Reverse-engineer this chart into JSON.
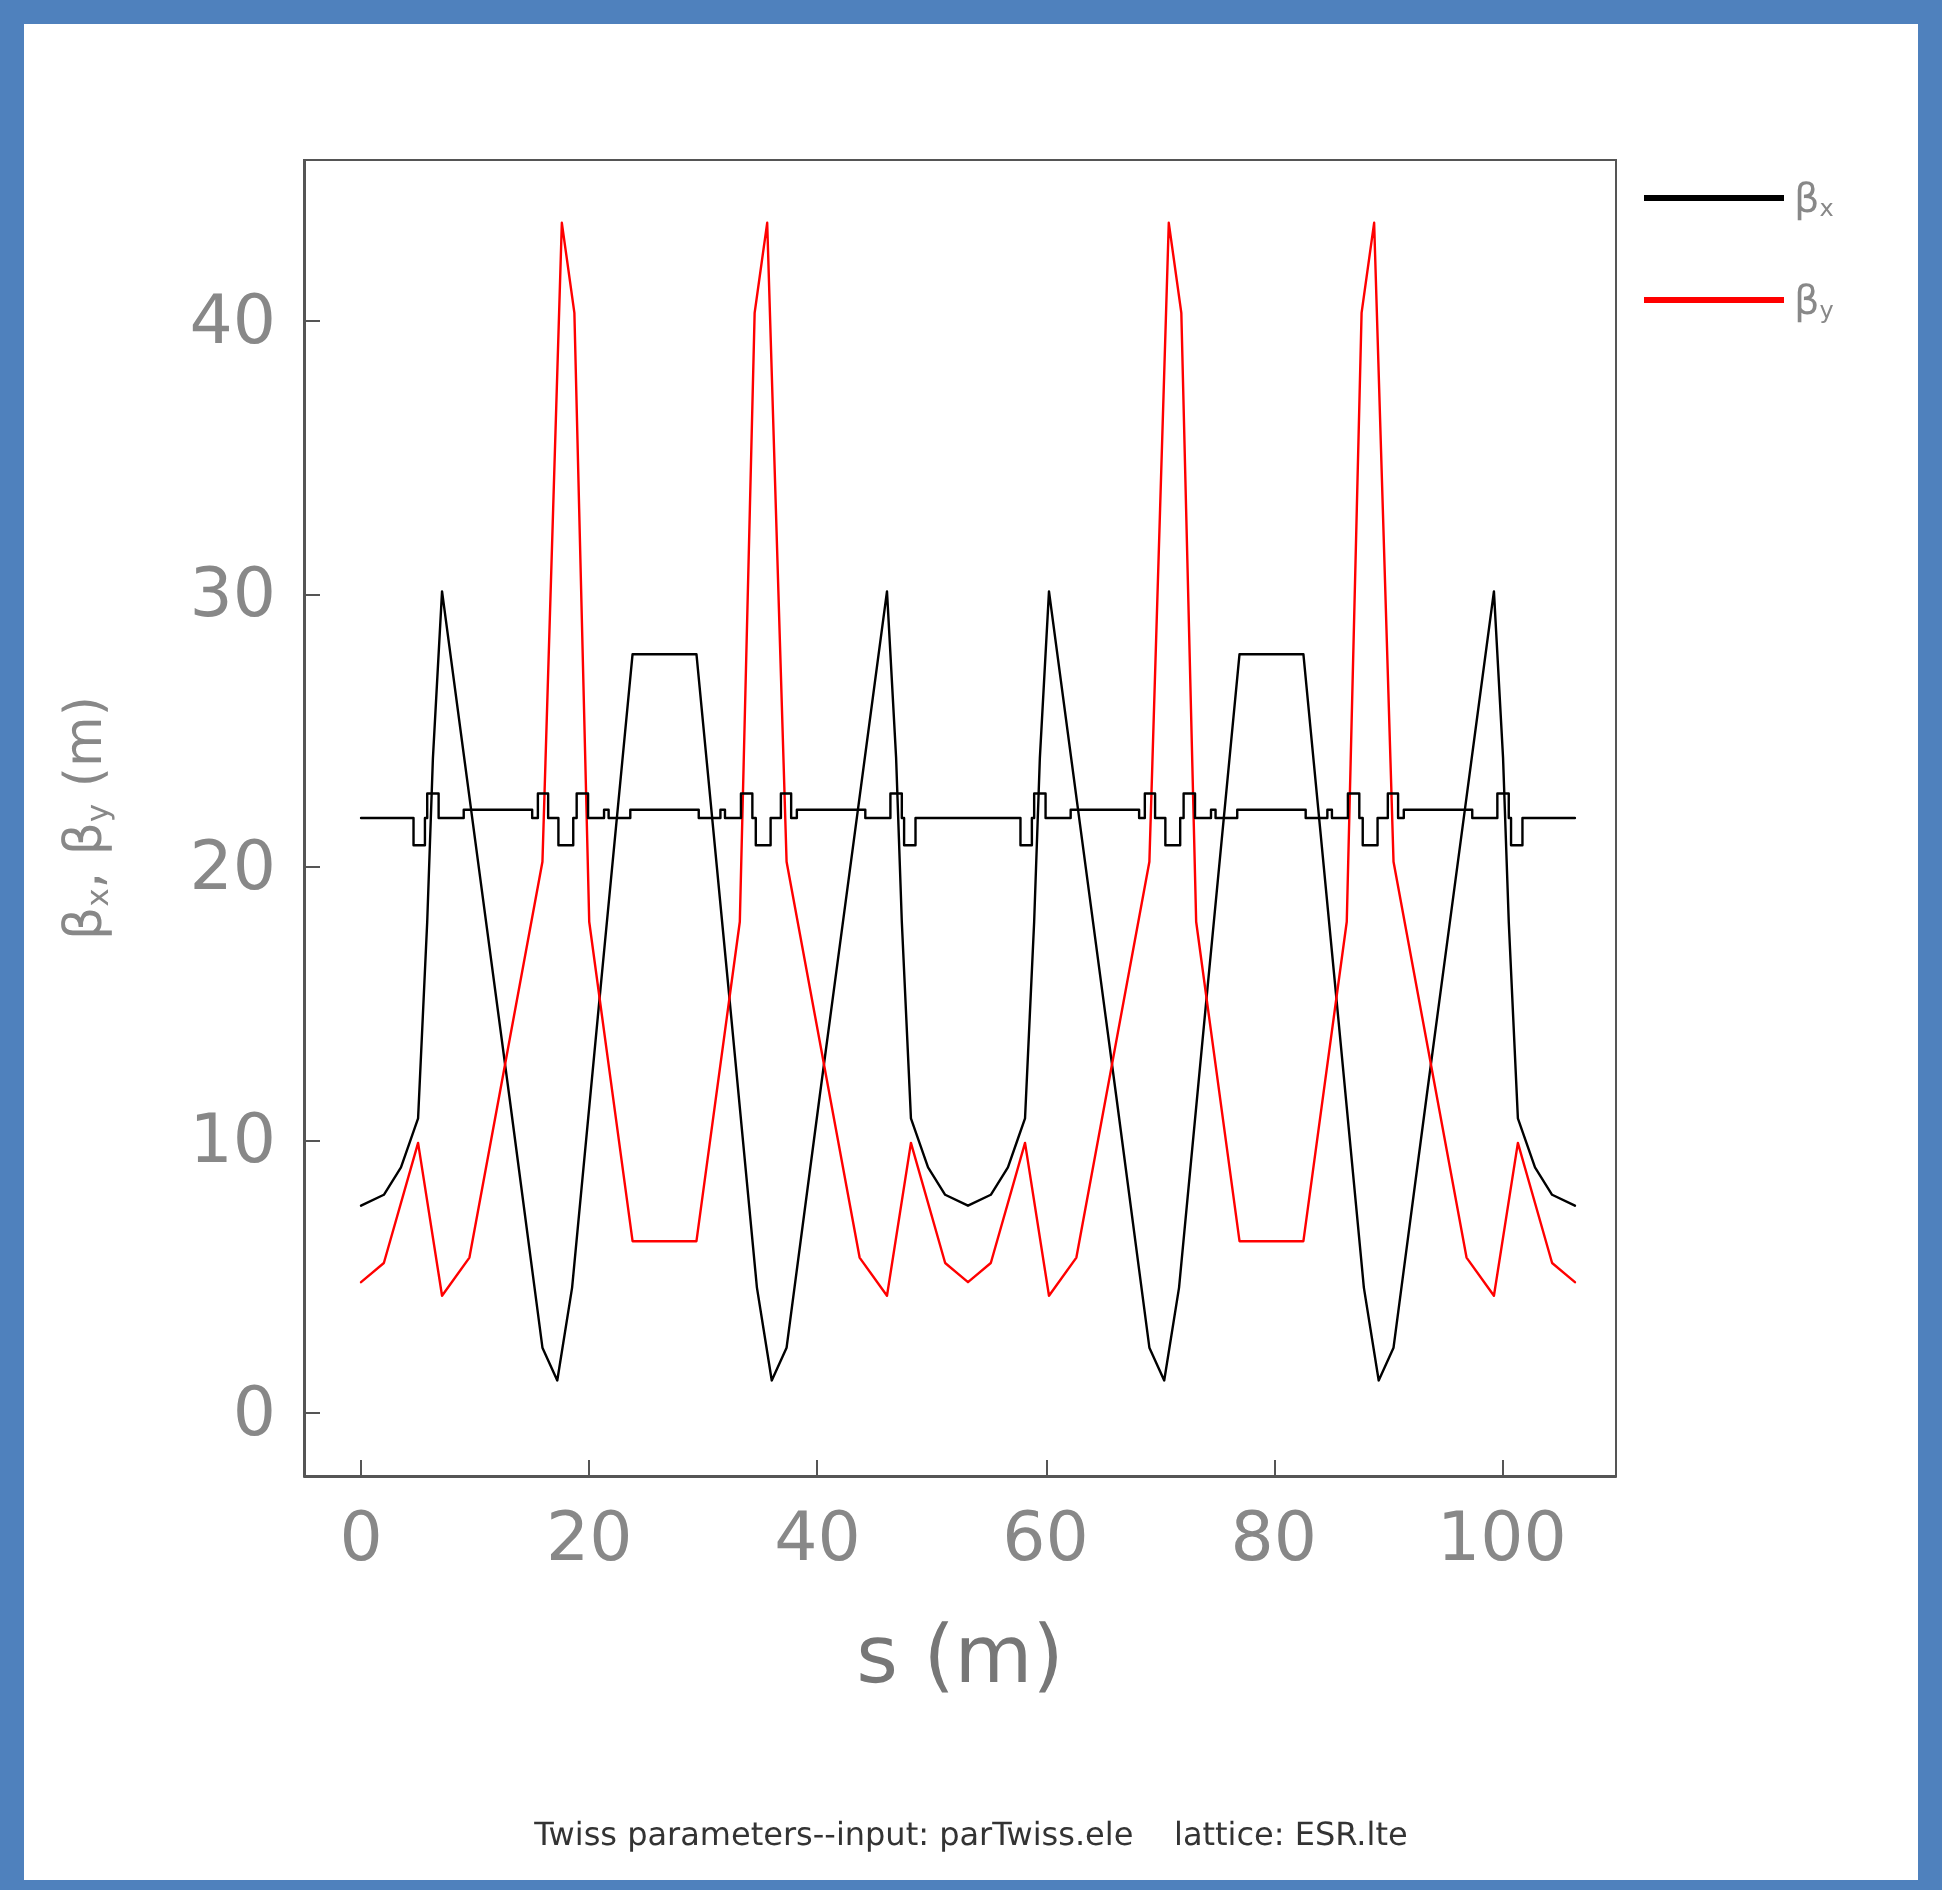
{
  "chart_data": {
    "type": "line",
    "xlabel": "s (m)",
    "ylabel": "β$_{x}$, β$_{y}$ (m)",
    "annotations": [
      "Twiss parameters--input: parTwiss.ele    lattice: ESR.lte"
    ],
    "xlim": [
      -5,
      110
    ],
    "ylim": [
      -2.3,
      45.9
    ],
    "xticks": [
      0,
      20,
      40,
      60,
      80,
      100
    ],
    "yticks": [
      0,
      10,
      20,
      30,
      40
    ],
    "grid": false,
    "legend": "top right",
    "marker": "none",
    "line_style": "solid",
    "series": [
      {
        "name": "β$_{x}$",
        "color": "#000000",
        "x": [
          0,
          2.0,
          3.5,
          5.0,
          5.8,
          6.3,
          7.1,
          10,
          13,
          15.9,
          17.2,
          18.5,
          21,
          23.8,
          29.4,
          32.2,
          34.7,
          36.0,
          37.3,
          40.2,
          43.2,
          46.1,
          46.9,
          47.4,
          48.2,
          49.7,
          51.2,
          53.2,
          55.2,
          56.7,
          58.2,
          59.0,
          59.5,
          60.3,
          63.2,
          66.2,
          69.1,
          70.4,
          71.7,
          74.2,
          77.0,
          82.6,
          85.4,
          87.9,
          89.2,
          90.5,
          93.4,
          96.4,
          99.3,
          100.1,
          100.6,
          101.4,
          102.9,
          104.4,
          106.4
        ],
        "values": [
          7.6,
          8.0,
          9.0,
          10.8,
          18.0,
          24.0,
          30.1,
          21.0,
          11.6,
          2.4,
          1.2,
          4.6,
          15.6,
          27.8,
          27.8,
          15.6,
          4.6,
          1.2,
          2.4,
          11.6,
          21.0,
          30.1,
          24.0,
          18.0,
          10.8,
          9.0,
          8.0,
          7.6,
          8.0,
          9.0,
          10.8,
          18.0,
          24.0,
          30.1,
          21.0,
          11.6,
          2.4,
          1.2,
          4.6,
          15.6,
          27.8,
          27.8,
          15.6,
          4.6,
          1.2,
          2.4,
          11.6,
          21.0,
          30.1,
          24.0,
          18.0,
          10.8,
          9.0,
          8.0,
          7.6
        ]
      },
      {
        "name": "β$_{y}$",
        "color": "#ff0000",
        "x": [
          0,
          2.0,
          5.0,
          7.1,
          9.5,
          15.9,
          17.6,
          18.7,
          20.0,
          23.8,
          29.4,
          33.2,
          34.5,
          35.6,
          37.3,
          43.7,
          46.1,
          48.2,
          51.2,
          53.2,
          55.2,
          58.2,
          60.3,
          62.7,
          69.1,
          70.8,
          71.9,
          73.2,
          77.0,
          82.6,
          86.4,
          87.7,
          88.8,
          90.5,
          96.9,
          99.3,
          101.4,
          104.4,
          106.4
        ],
        "values": [
          4.8,
          5.5,
          9.9,
          4.3,
          5.7,
          20.2,
          43.6,
          40.3,
          18.0,
          6.3,
          6.3,
          18.0,
          40.3,
          43.6,
          20.2,
          5.7,
          4.3,
          9.9,
          5.5,
          4.8,
          5.5,
          9.9,
          4.3,
          5.7,
          20.2,
          43.6,
          40.3,
          18.0,
          6.3,
          6.3,
          18.0,
          40.3,
          43.6,
          20.2,
          5.7,
          4.3,
          9.9,
          5.5,
          4.8
        ]
      },
      {
        "color": "#000000",
        "x": [
          0,
          4.6,
          4.6,
          5.6,
          5.6,
          5.8,
          5.8,
          6.8,
          6.8,
          9.0,
          9.0,
          15.0,
          15.0,
          15.5,
          15.5,
          16.4,
          16.4,
          17.3,
          17.3,
          18.6,
          18.6,
          18.9,
          18.9,
          19.9,
          19.9,
          21.3,
          21.3,
          21.7,
          21.7,
          23.6,
          23.6,
          29.6,
          29.6,
          31.5,
          31.5,
          31.9,
          31.9,
          33.3,
          33.3,
          34.3,
          34.3,
          34.6,
          34.6,
          35.9,
          35.9,
          36.8,
          36.8,
          37.7,
          37.7,
          38.2,
          38.2,
          44.2,
          44.2,
          46.4,
          46.4,
          47.4,
          47.4,
          47.6,
          47.6,
          48.6,
          48.6,
          53.2,
          57.8,
          57.8,
          58.8,
          58.8,
          59.0,
          59.0,
          60.0,
          60.0,
          62.2,
          62.2,
          68.2,
          68.2,
          68.7,
          68.7,
          69.6,
          69.6,
          70.5,
          70.5,
          71.8,
          71.8,
          72.1,
          72.1,
          73.1,
          73.1,
          74.5,
          74.5,
          74.9,
          74.9,
          76.8,
          76.8,
          82.8,
          82.8,
          84.7,
          84.7,
          85.1,
          85.1,
          86.5,
          86.5,
          87.5,
          87.5,
          87.8,
          87.8,
          89.1,
          89.1,
          90.0,
          90.0,
          90.9,
          90.9,
          91.4,
          91.4,
          97.4,
          97.4,
          99.6,
          99.6,
          100.6,
          100.6,
          100.8,
          100.8,
          101.8,
          101.8,
          106.4
        ],
        "values": [
          21.8,
          21.8,
          20.8,
          20.8,
          21.8,
          21.8,
          22.7,
          22.7,
          21.8,
          21.8,
          22.1,
          22.1,
          21.8,
          21.8,
          22.7,
          22.7,
          21.8,
          21.8,
          20.8,
          20.8,
          21.8,
          21.8,
          22.7,
          22.7,
          21.8,
          21.8,
          22.1,
          22.1,
          21.8,
          21.8,
          22.1,
          22.1,
          21.8,
          21.8,
          22.1,
          22.1,
          21.8,
          21.8,
          22.7,
          22.7,
          21.8,
          21.8,
          20.8,
          20.8,
          21.8,
          21.8,
          22.7,
          22.7,
          21.8,
          21.8,
          22.1,
          22.1,
          21.8,
          21.8,
          22.7,
          22.7,
          21.8,
          21.8,
          20.8,
          20.8,
          21.8,
          21.8,
          21.8,
          20.8,
          20.8,
          21.8,
          21.8,
          22.7,
          22.7,
          21.8,
          21.8,
          22.1,
          22.1,
          21.8,
          21.8,
          22.7,
          22.7,
          21.8,
          21.8,
          20.8,
          20.8,
          21.8,
          21.8,
          22.7,
          22.7,
          21.8,
          21.8,
          22.1,
          22.1,
          21.8,
          21.8,
          22.1,
          22.1,
          21.8,
          21.8,
          22.1,
          22.1,
          21.8,
          21.8,
          22.7,
          22.7,
          21.8,
          21.8,
          20.8,
          20.8,
          21.8,
          21.8,
          22.7,
          22.7,
          21.8,
          21.8,
          22.1,
          22.1,
          21.8,
          21.8,
          22.7,
          22.7,
          21.8,
          21.8,
          20.8,
          20.8,
          21.8,
          21.8
        ]
      }
    ]
  }
}
